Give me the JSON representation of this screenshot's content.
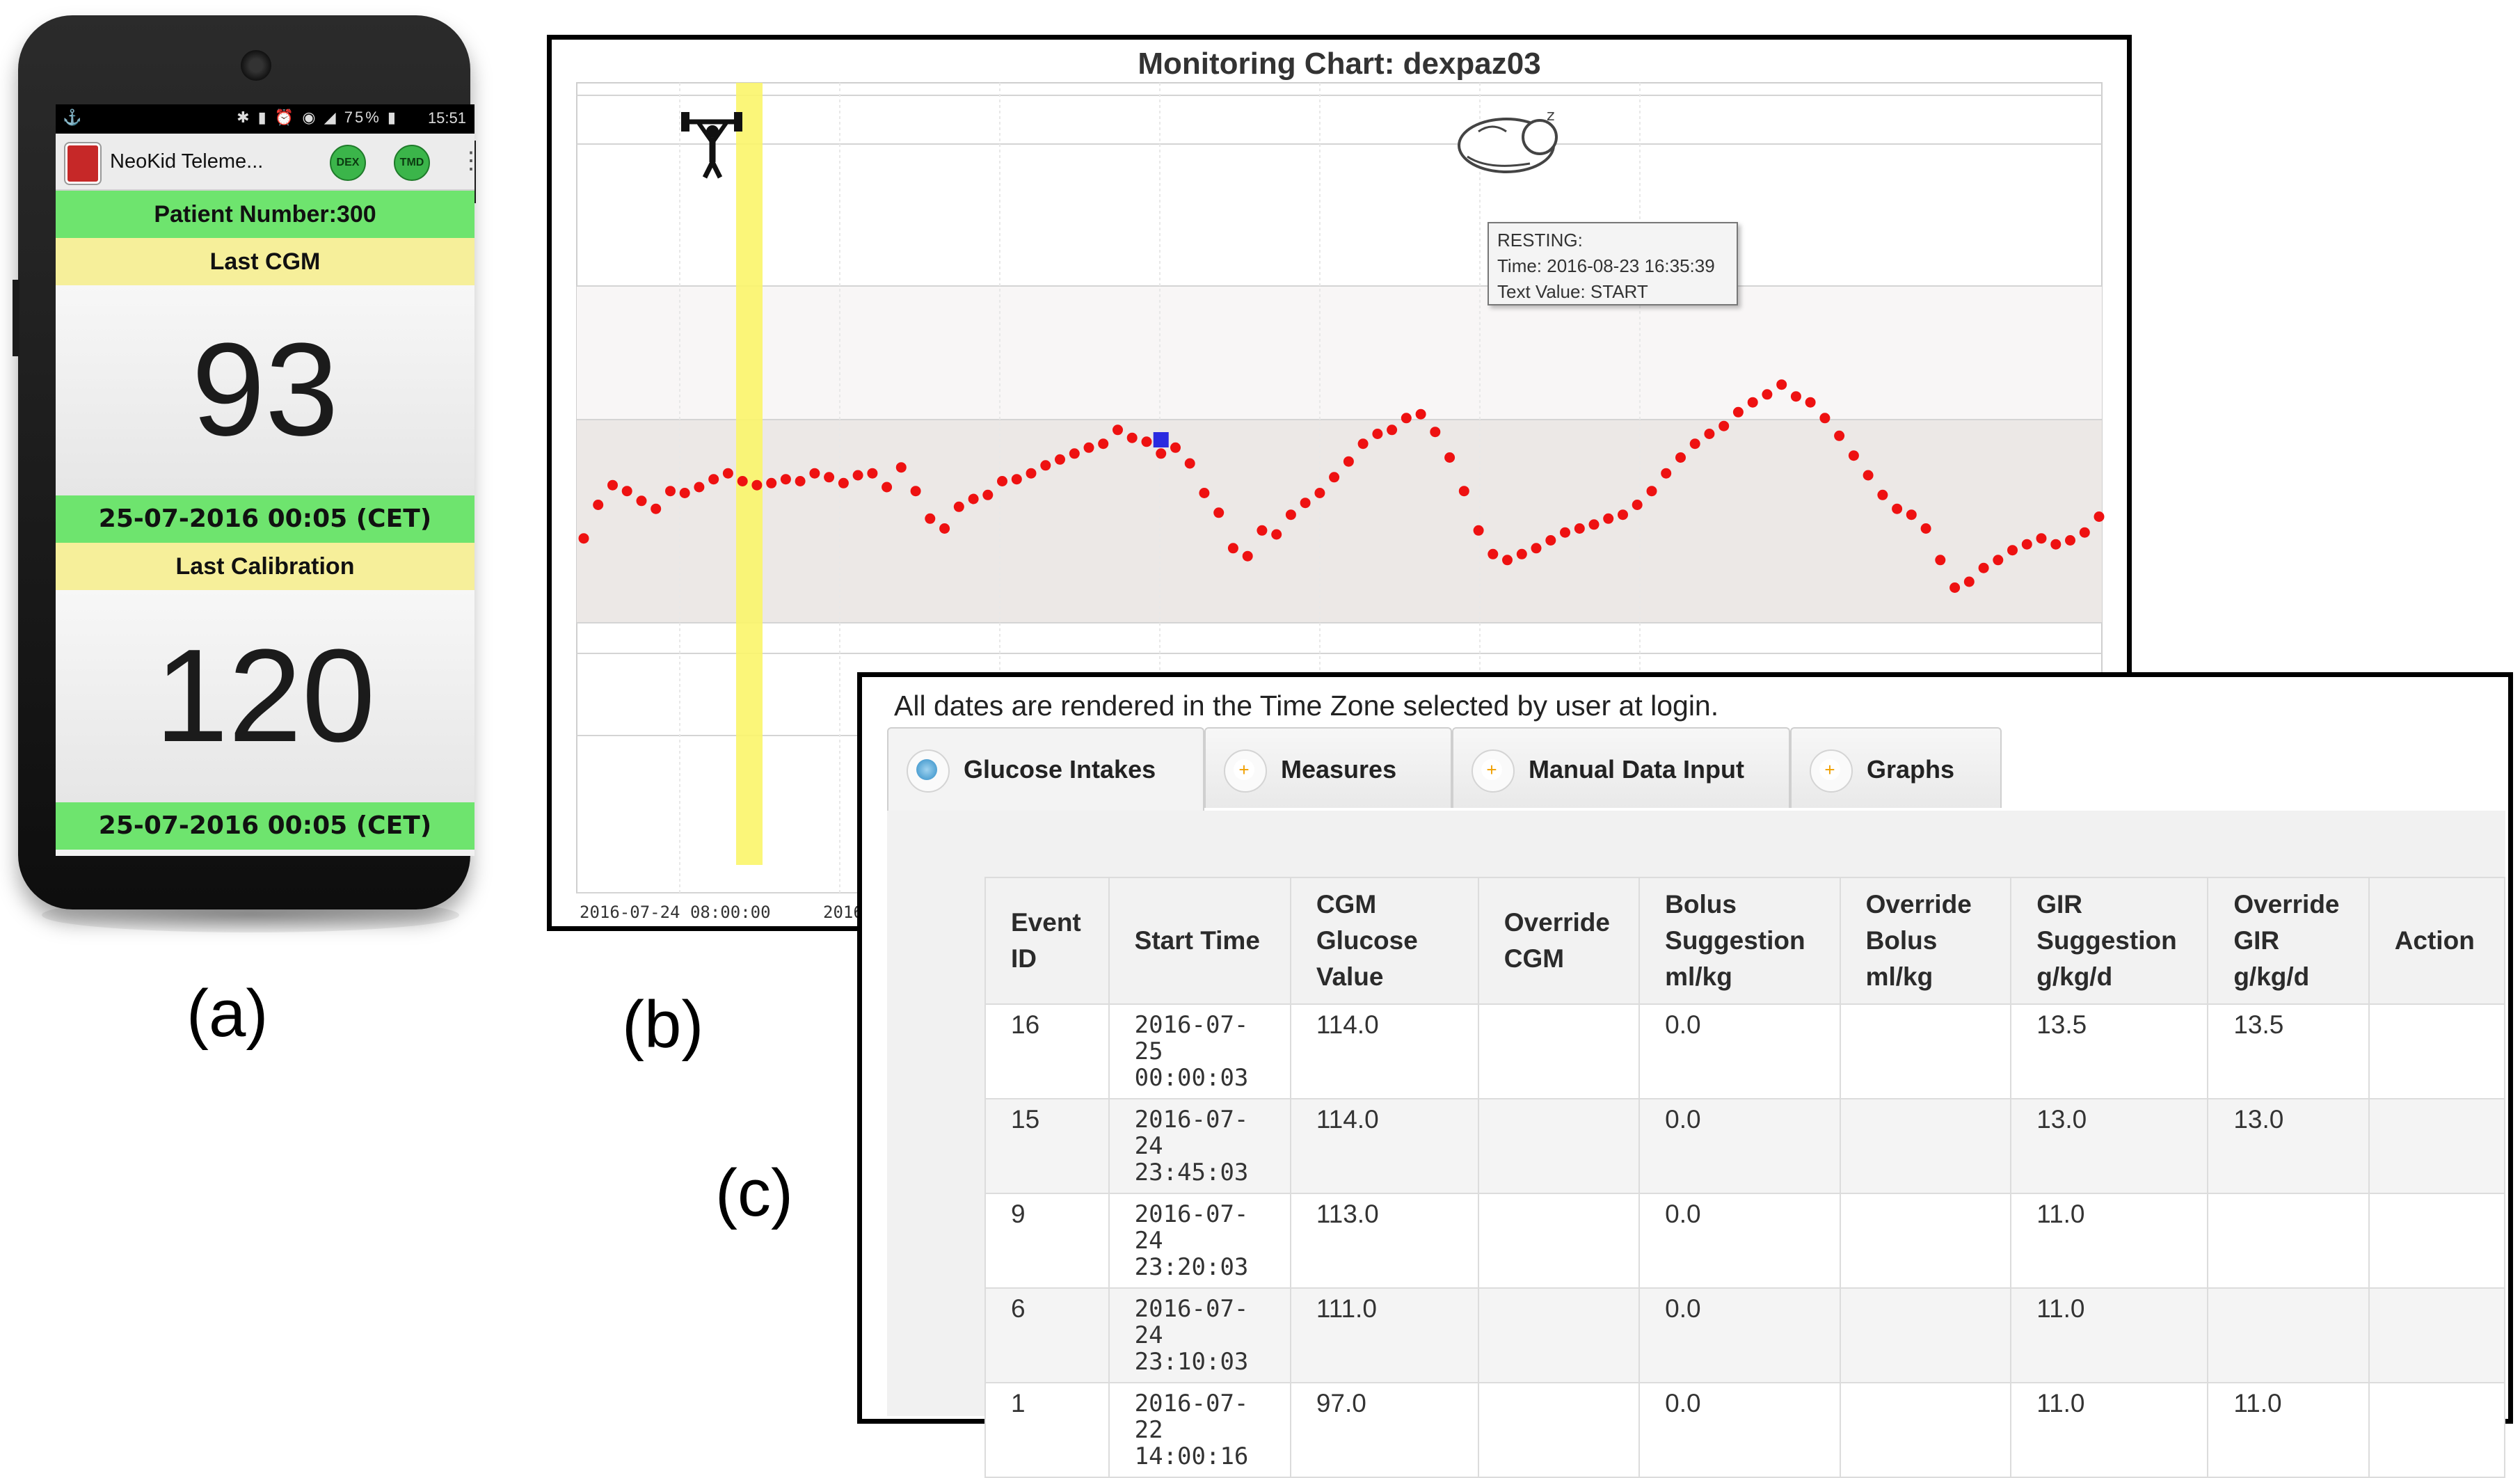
{
  "captions": {
    "a": "(a)",
    "b": "(b)",
    "c": "(c)"
  },
  "phone": {
    "status": {
      "time": "15:51",
      "battery": "75%"
    },
    "app_title": "NeoKid Teleme...",
    "buttons": [
      "DEX",
      "TMD"
    ],
    "patient": "Patient Number:300",
    "last_cgm_label": "Last CGM",
    "last_cgm_value": "93",
    "last_cgm_time": "25-07-2016 00:05 (CET)",
    "last_cal_label": "Last Calibration",
    "last_cal_value": "120",
    "last_cal_time": "25-07-2016 00:05 (CET)"
  },
  "chart": {
    "title": "Monitoring Chart: dexpaz03",
    "x_start_label": "2016-07-24 08:00:00",
    "x_second_label_partial": "2016",
    "tooltip": {
      "line1": "RESTING:",
      "line2": "Time: 2016-08-23 16:35:39",
      "line3": "Text Value: START"
    },
    "icons": [
      "weightlifter-icon",
      "sleeping-baby-icon"
    ],
    "colors": {
      "series": "#ee1111",
      "marker": "#2a2ae0",
      "band": "#fbf56a",
      "target_range": "#ece8e6"
    }
  },
  "chart_data": {
    "type": "scatter",
    "series": [
      {
        "values": [
          0.0,
          1.7,
          2.7,
          2.4,
          1.9,
          1.5,
          2.4,
          2.3,
          2.6,
          3.0,
          3.3,
          2.9,
          2.7,
          2.8,
          3.0,
          2.9,
          3.3,
          3.1,
          2.8,
          3.2,
          3.3,
          2.6,
          3.6,
          2.4,
          1.0,
          0.5,
          1.6,
          2.0,
          2.2,
          2.9,
          3.0,
          3.3,
          3.7,
          4.0,
          4.3,
          4.6,
          4.8,
          5.5,
          5.1,
          4.9,
          4.3,
          4.6,
          3.8,
          2.3,
          1.3,
          -0.5,
          -0.9,
          0.4,
          0.2,
          1.2,
          1.8,
          2.3,
          3.1,
          3.9,
          4.8,
          5.3,
          5.5,
          6.1,
          6.3,
          5.4,
          4.1,
          2.4,
          0.4,
          -0.8,
          -1.1,
          -0.8,
          -0.5,
          -0.1,
          0.3,
          0.5,
          0.7,
          1.0,
          1.2,
          1.7,
          2.4,
          3.3,
          4.1,
          4.8,
          5.3,
          5.7,
          6.4,
          6.9,
          7.3,
          7.8,
          7.2,
          6.9,
          6.1,
          5.2,
          4.2,
          3.2,
          2.2,
          1.5,
          1.2,
          0.5,
          -1.1,
          -2.5,
          -2.2,
          -1.5,
          -1.1,
          -0.6,
          -0.3,
          0.0,
          -0.3,
          -0.1,
          0.3,
          1.1
        ]
      }
    ],
    "marker_value": 5.0
  },
  "table_view": {
    "tz_note": "All dates are rendered in the Time Zone selected by user at login.",
    "tabs": [
      "Glucose Intakes",
      "Measures",
      "Manual Data Input",
      "Graphs"
    ],
    "headers": [
      [
        "Event",
        "ID"
      ],
      [
        "Start Time"
      ],
      [
        "CGM",
        "Glucose",
        "Value"
      ],
      [
        "Override",
        "CGM"
      ],
      [
        "Bolus",
        "Suggestion",
        "ml/kg"
      ],
      [
        "Override",
        "Bolus",
        "ml/kg"
      ],
      [
        "GIR",
        "Suggestion",
        "g/kg/d"
      ],
      [
        "Override",
        "GIR",
        "g/kg/d"
      ],
      [
        "Action"
      ]
    ],
    "rows": [
      {
        "id": "16",
        "date": "2016-07-25",
        "time": "00:00:03",
        "cgm": "114.0",
        "ocgm": "",
        "bolus": "0.0",
        "obolus": "",
        "gir": "13.5",
        "ogir": "13.5",
        "action": ""
      },
      {
        "id": "15",
        "date": "2016-07-24",
        "time": "23:45:03",
        "cgm": "114.0",
        "ocgm": "",
        "bolus": "0.0",
        "obolus": "",
        "gir": "13.0",
        "ogir": "13.0",
        "action": ""
      },
      {
        "id": "9",
        "date": "2016-07-24",
        "time": "23:20:03",
        "cgm": "113.0",
        "ocgm": "",
        "bolus": "0.0",
        "obolus": "",
        "gir": "11.0",
        "ogir": "",
        "action": ""
      },
      {
        "id": "6",
        "date": "2016-07-24",
        "time": "23:10:03",
        "cgm": "111.0",
        "ocgm": "",
        "bolus": "0.0",
        "obolus": "",
        "gir": "11.0",
        "ogir": "",
        "action": ""
      },
      {
        "id": "1",
        "date": "2016-07-22",
        "time": "14:00:16",
        "cgm": "97.0",
        "ocgm": "",
        "bolus": "0.0",
        "obolus": "",
        "gir": "11.0",
        "ogir": "11.0",
        "action": ""
      }
    ]
  }
}
